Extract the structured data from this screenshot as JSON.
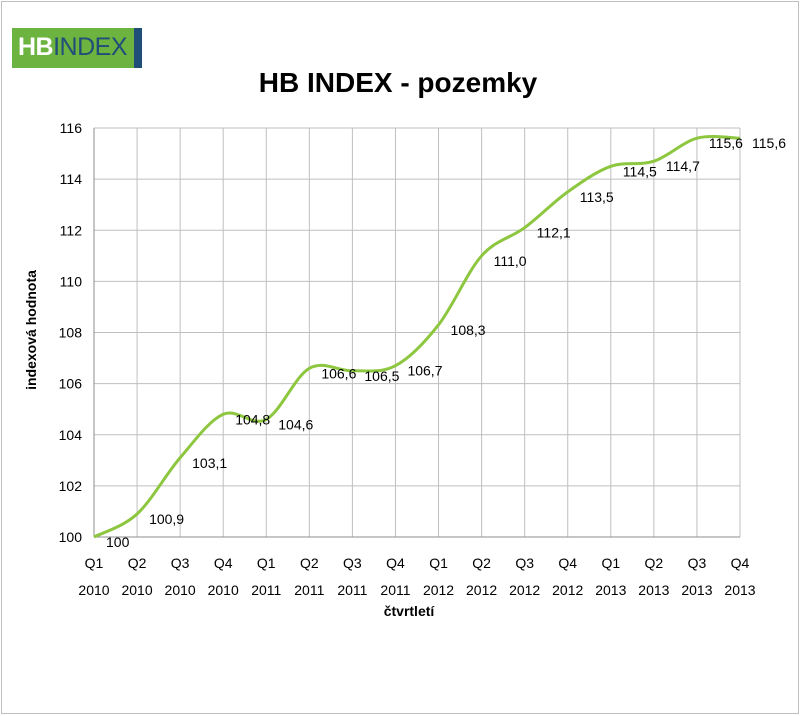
{
  "logo": {
    "part1": "HB",
    "part2": "INDEX"
  },
  "chart_data": {
    "type": "line",
    "title": "HB INDEX - pozemky",
    "xlabel": "čtvrtletí",
    "ylabel": "indexová hodnota",
    "ylim": [
      100,
      116
    ],
    "yticks": [
      "100",
      "102",
      "104",
      "106",
      "108",
      "110",
      "112",
      "114",
      "116"
    ],
    "grid": true,
    "line_color": "#8dc63f",
    "categories": [
      [
        "Q1",
        "2010"
      ],
      [
        "Q2",
        "2010"
      ],
      [
        "Q3",
        "2010"
      ],
      [
        "Q4",
        "2010"
      ],
      [
        "Q1",
        "2011"
      ],
      [
        "Q2",
        "2011"
      ],
      [
        "Q3",
        "2011"
      ],
      [
        "Q4",
        "2011"
      ],
      [
        "Q1",
        "2012"
      ],
      [
        "Q2",
        "2012"
      ],
      [
        "Q3",
        "2012"
      ],
      [
        "Q4",
        "2012"
      ],
      [
        "Q1",
        "2013"
      ],
      [
        "Q2",
        "2013"
      ],
      [
        "Q3",
        "2013"
      ],
      [
        "Q4",
        "2013"
      ]
    ],
    "values": [
      100,
      100.9,
      103.1,
      104.8,
      104.6,
      106.6,
      106.5,
      106.7,
      108.3,
      111.0,
      112.1,
      113.5,
      114.5,
      114.7,
      115.6,
      115.6
    ],
    "data_labels": [
      "100",
      "100,9",
      "103,1",
      "104,8",
      "104,6",
      "106,6",
      "106,5",
      "106,7",
      "108,3",
      "111,0",
      "112,1",
      "113,5",
      "114,5",
      "114,7",
      "115,6",
      "115,6"
    ]
  }
}
